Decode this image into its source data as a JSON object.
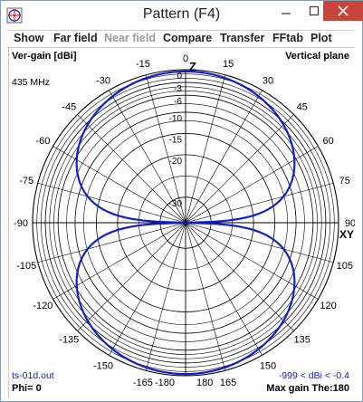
{
  "window": {
    "title": "Pattern   (F4)",
    "controls": {
      "minimize": "minimize",
      "maximize": "maximize",
      "close": "close"
    }
  },
  "menu": [
    {
      "label": "Show",
      "enabled": true
    },
    {
      "label": "Far field",
      "enabled": true
    },
    {
      "label": "Near field",
      "enabled": false
    },
    {
      "label": "Compare",
      "enabled": true
    },
    {
      "label": "Transfer",
      "enabled": true
    },
    {
      "label": "FFtab",
      "enabled": true
    },
    {
      "label": "Plot",
      "enabled": true
    }
  ],
  "plot": {
    "top_left": "Ver-gain [dBi]",
    "top_right": "Vertical plane",
    "frequency": "435 MHz",
    "axis_z": "Z",
    "axis_xy": "XY",
    "bottom_left_file": "ts-01d.out",
    "bottom_left_phi": "Phi= 0",
    "bottom_right_range": "-999 < dBi < -0.4",
    "bottom_right_max": "Max gain The:180",
    "db_ring_labels": [
      "0",
      "-3",
      "-6",
      "-10",
      "-15",
      "-20",
      "-30"
    ],
    "angle_labels": [
      "0",
      "15",
      "30",
      "45",
      "60",
      "75",
      "90",
      "105",
      "120",
      "135",
      "150",
      "165",
      "180",
      "-15",
      "-30",
      "-45",
      "-60",
      "-75",
      "-90",
      "-105",
      "-120",
      "-135",
      "-150",
      "-165",
      "-180"
    ],
    "pattern_color": "#1020c0",
    "grid_color": "#000000"
  },
  "chart_data": {
    "type": "polar",
    "title": "Vertical plane",
    "radial_label": "Ver-gain [dBi]",
    "radial_ticks_db": [
      0,
      -3,
      -6,
      -10,
      -15,
      -20,
      -30
    ],
    "angle_ticks_deg": [
      0,
      15,
      30,
      45,
      60,
      75,
      90,
      105,
      120,
      135,
      150,
      165,
      180,
      -15,
      -30,
      -45,
      -60,
      -75,
      -90,
      -105,
      -120,
      -135,
      -150,
      -165,
      -180
    ],
    "frequency": "435 MHz",
    "phi": 0,
    "gain_range": "-999 < dBi < -0.4",
    "max_gain_theta": 180,
    "series": [
      {
        "color": "#1020c0",
        "pattern": "cos-theta-dipole",
        "theta_deg": [
          0,
          15,
          30,
          45,
          60,
          75,
          80,
          85,
          88,
          90,
          92,
          95,
          100,
          105,
          120,
          135,
          150,
          165,
          180
        ],
        "gain_dbi": [
          -0.4,
          -0.7,
          -1.6,
          -3.4,
          -6.4,
          -12.1,
          -15.6,
          -21.6,
          -30,
          -36,
          -30,
          -21.6,
          -15.6,
          -12.1,
          -6.4,
          -3.4,
          -1.6,
          -0.7,
          -0.4
        ]
      }
    ]
  }
}
